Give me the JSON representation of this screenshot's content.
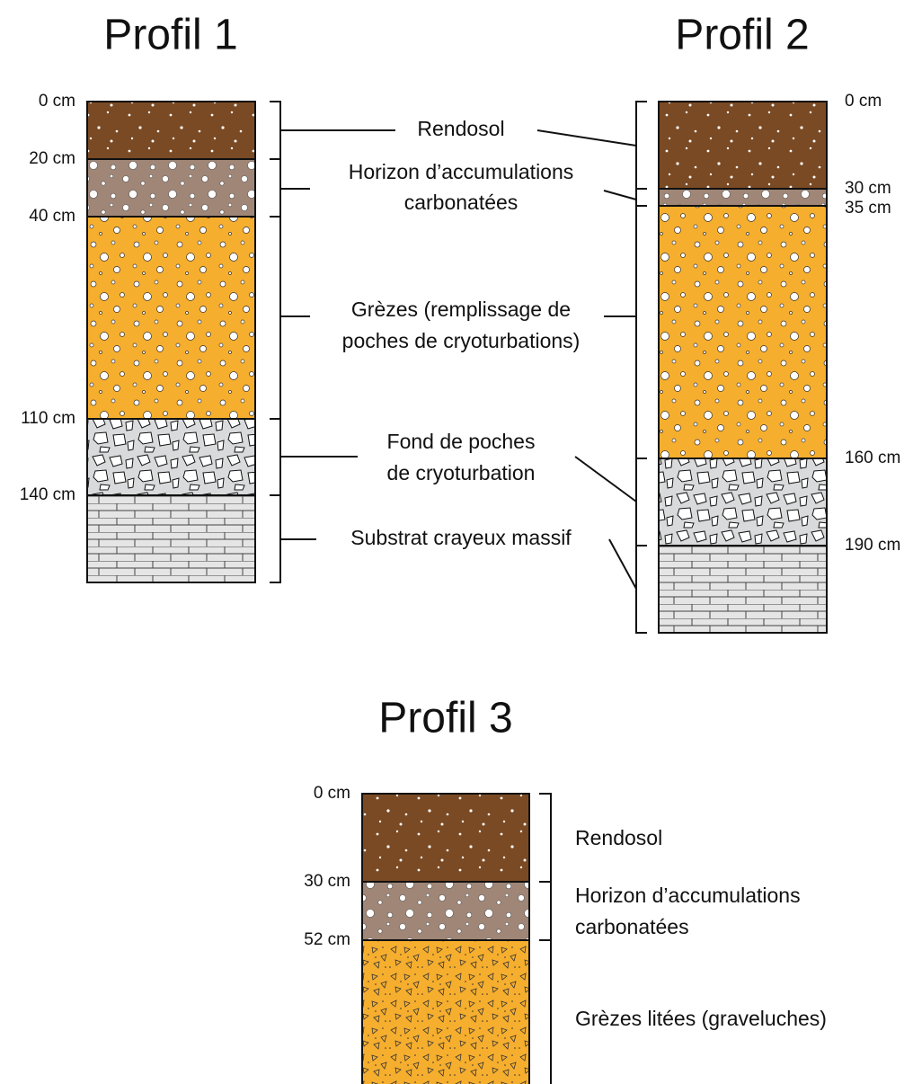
{
  "profiles": [
    {
      "title": "Profil 1",
      "depths": [
        "0 cm",
        "20 cm",
        "40 cm",
        "110 cm",
        "140 cm"
      ]
    },
    {
      "title": "Profil 2",
      "depths": [
        "0 cm",
        "30 cm",
        "35 cm",
        "160 cm",
        "190 cm"
      ]
    },
    {
      "title": "Profil 3",
      "depths": [
        "0 cm",
        "30 cm",
        "52 cm"
      ]
    }
  ],
  "legend": [
    {
      "lines": [
        "Rendosol"
      ]
    },
    {
      "lines": [
        "Horizon d’accumulations",
        "carbonatées"
      ]
    },
    {
      "lines": [
        "Grèzes (remplissage de",
        "poches de cryoturbations)"
      ]
    },
    {
      "lines": [
        "Fond de poches",
        "de cryoturbation"
      ]
    },
    {
      "lines": [
        "Substrat crayeux massif"
      ]
    }
  ],
  "legend3": [
    {
      "lines": [
        "Rendosol"
      ]
    },
    {
      "lines": [
        "Horizon d’accumulations",
        "carbonatées"
      ]
    },
    {
      "lines": [
        "Grèzes litées (graveluches)"
      ]
    }
  ]
}
